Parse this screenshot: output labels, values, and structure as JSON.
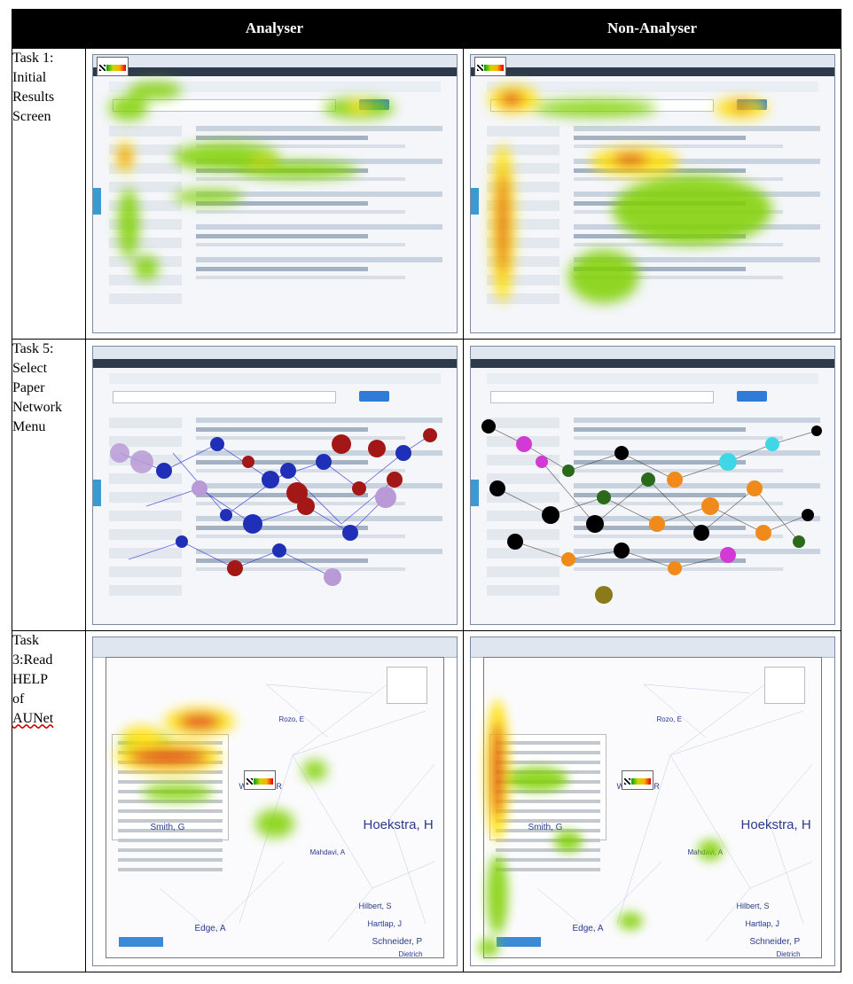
{
  "header": {
    "analyser": "Analyser",
    "non_analyser": "Non-Analyser"
  },
  "tasks": [
    {
      "label": [
        "Task 1:",
        "Initial",
        "Results",
        "Screen"
      ]
    },
    {
      "label": [
        "Task 5:",
        "Select",
        "Paper",
        "Network",
        "Menu"
      ]
    },
    {
      "label": [
        "Task",
        "3:Read",
        "HELP",
        "of",
        "AUNet"
      ]
    }
  ],
  "network_labels": [
    "Hoekstra, H",
    "Wechsler, R",
    "Edge, A",
    "Schneider, P",
    "Hartlap, J",
    "Hilbert, S",
    "Dietrich",
    "Mahdavi, A",
    "Rozo, E",
    "Smith, G"
  ],
  "colors": {
    "heat_green": "#7fd000",
    "heat_yellow": "#ffe000",
    "heat_red": "#e00000",
    "node_blue": "#1f2fb8",
    "node_red": "#a31717",
    "node_purple": "#b89ad6",
    "node_orange": "#f08a1a",
    "node_green": "#2a6a1a",
    "node_magenta": "#d23ad6",
    "node_cyan": "#3fd6e6"
  }
}
